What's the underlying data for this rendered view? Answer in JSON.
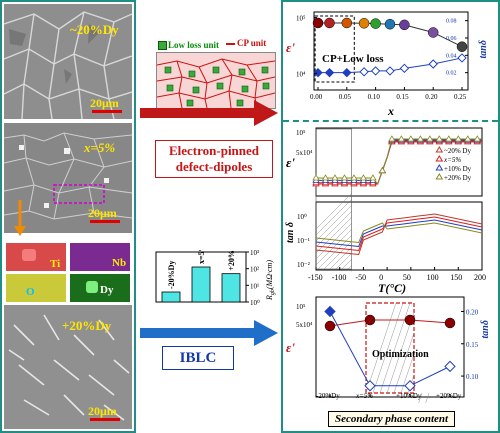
{
  "sem_labels": {
    "top": "~20%Dy",
    "mid": "x=5%",
    "bottom": "+20%Dy"
  },
  "scale_label": "20μm",
  "eds": [
    "Ti",
    "Nb",
    "O",
    "Dy"
  ],
  "schematic": {
    "low_loss": "Low loss unit",
    "cp": "CP unit"
  },
  "mechanism1": "Electron-pinned defect-dipoles",
  "mechanism2": "IBLC",
  "bar_chart": {
    "categories": [
      "-20%Dy",
      "x=5%",
      "+20%Dy"
    ],
    "ylabel_main": "R",
    "ylabel_sub": "gb",
    "ylabel_unit": "(MΩ·cm)",
    "yticks": [
      "10⁰",
      "10¹",
      "10²",
      "10³"
    ]
  },
  "top_chart": {
    "type": "scatter",
    "xlabel": "x",
    "ylabel": "ε'",
    "y2label": "tanδ",
    "xticks": [
      "0.00",
      "0.05",
      "0.10",
      "0.15",
      "0.20",
      "0.25"
    ],
    "yticks": [
      "10⁴",
      "10⁵"
    ],
    "y2ticks": [
      "0.02",
      "0.04",
      "0.06",
      "0.08"
    ],
    "annotation": "CP+Low loss",
    "x": [
      0.0,
      0.02,
      0.05,
      0.08,
      0.1,
      0.125,
      0.15,
      0.2,
      0.25
    ],
    "eps": [
      80000,
      80000,
      80000,
      79000,
      78000,
      76000,
      74000,
      54000,
      30000
    ],
    "tan": [
      0.02,
      0.02,
      0.02,
      0.021,
      0.022,
      0.022,
      0.025,
      0.03,
      0.037
    ]
  },
  "temp_chart": {
    "type": "line",
    "xlabel": "T(°C)",
    "ylabel_top": "ε'",
    "ylabel_bottom": "tan δ",
    "xticks": [
      "-150",
      "-100",
      "-50",
      "0",
      "50",
      "100",
      "150",
      "200"
    ],
    "eps_ticks": [
      "5x10⁴",
      "10⁵"
    ],
    "tan_ticks": [
      "10⁻²",
      "10⁻¹",
      "10⁰"
    ],
    "legend": [
      "~20% Dy",
      "x=5%",
      "+10% Dy",
      "+20% Dy"
    ],
    "series_colors": [
      "#c0392b",
      "#e41a1c",
      "#1f3fbf",
      "#8a8a1f"
    ]
  },
  "opt_chart": {
    "type": "line",
    "xlabel": "Secondary phase content",
    "ylabel": "ε'",
    "y2label": "tanδ",
    "categories": [
      "-20%Dy",
      "x=5%",
      "+10%Dy",
      "+20%Dy"
    ],
    "eps_ticks": [
      "5x10⁴",
      "10⁵"
    ],
    "y2ticks": [
      "0.10",
      "0.15",
      "0.20"
    ],
    "annotation": "Optimization",
    "eps": [
      65000,
      67000,
      67000,
      66000
    ],
    "tan": [
      0.2,
      0.085,
      0.085,
      0.115
    ]
  },
  "colors": {
    "frame": "#1f8f85",
    "red_arrow": "#c01818",
    "blue_arrow": "#1f6fc8",
    "bar_fill": "#4fe5e5"
  }
}
